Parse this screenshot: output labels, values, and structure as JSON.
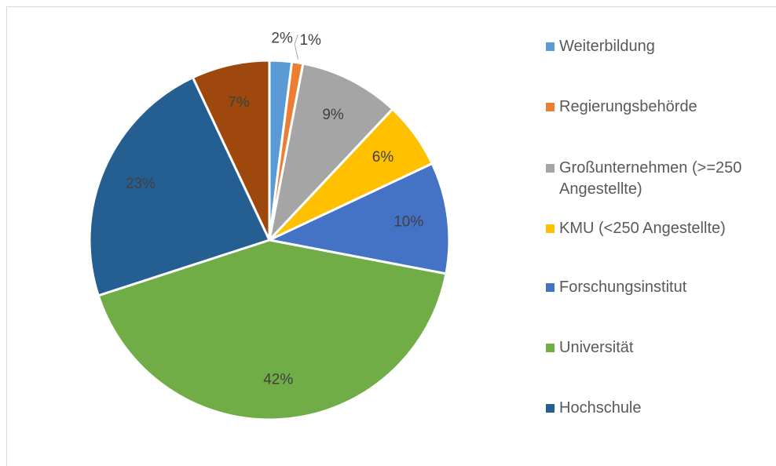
{
  "chart_data": {
    "type": "pie",
    "categories": [
      "Weiterbildung",
      "Regierungsbehörde",
      "Großunternehmen (>=250 Angestellte)",
      "KMU (<250 Angestellte)",
      "Forschungsinstitut",
      "Universität",
      "Hochschule",
      null
    ],
    "values": [
      2,
      1,
      9,
      6,
      10,
      42,
      23,
      7
    ],
    "value_labels": [
      "2%",
      "1%",
      "9%",
      "6%",
      "10%",
      "42%",
      "23%",
      "7%"
    ],
    "colors": [
      "#5b9bd5",
      "#ed7d31",
      "#a5a5a5",
      "#ffc000",
      "#4472c4",
      "#70ad47",
      "#255e91",
      "#9e480e"
    ],
    "legend": "right"
  }
}
